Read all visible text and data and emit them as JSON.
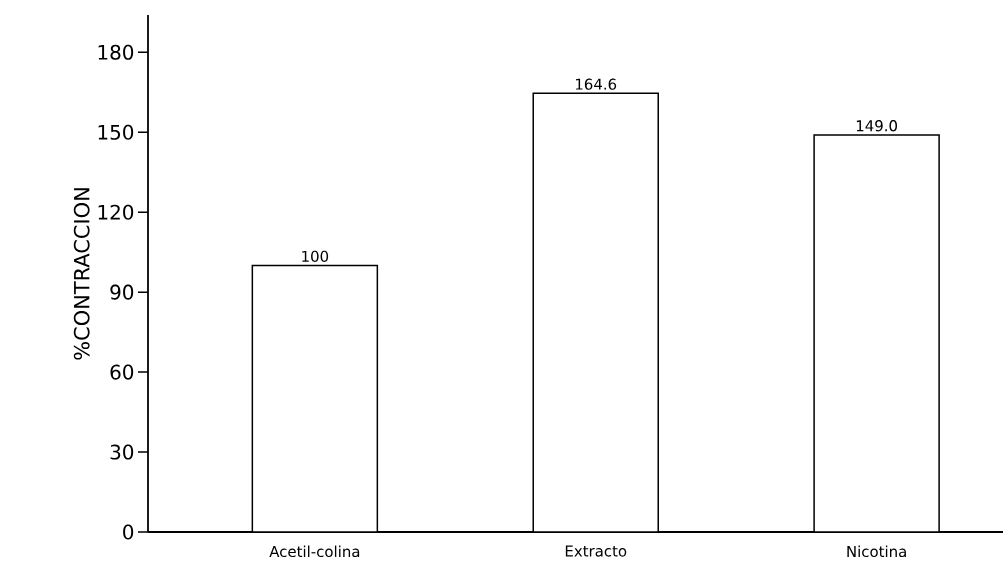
{
  "chart_data": {
    "type": "bar",
    "ylabel": "%CONTRACCION",
    "categories": [
      "Acetil-colina",
      "Extracto",
      "Nicotina"
    ],
    "values": [
      100,
      164.6,
      149.0
    ],
    "value_labels": [
      "100",
      "164.6",
      "149.0"
    ],
    "color": "#ffffff",
    "ylim": [
      0,
      194
    ],
    "yticks": [
      0,
      30,
      60,
      90,
      120,
      150,
      180
    ]
  }
}
